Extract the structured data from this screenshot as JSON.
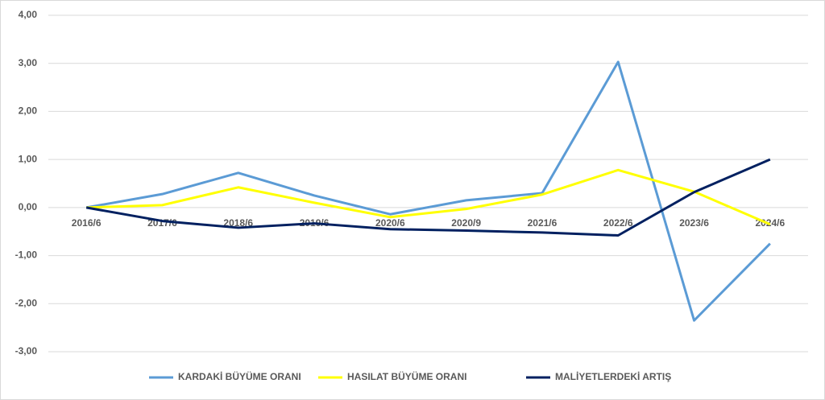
{
  "chart_data": {
    "type": "line",
    "categories": [
      "2016/6",
      "2017/6",
      "2018/6",
      "2019/6",
      "2020/6",
      "2020/9",
      "2021/6",
      "2022/6",
      "2023/6",
      "2024/6"
    ],
    "series": [
      {
        "name": "KARDAKİ BÜYÜME ORANI",
        "color": "#5b9bd5",
        "values": [
          0,
          0.28,
          0.72,
          0.25,
          -0.14,
          0.15,
          0.3,
          3.03,
          -2.35,
          -0.75
        ]
      },
      {
        "name": "HASILAT BÜYÜME ORANI",
        "color": "#ffff00",
        "values": [
          0,
          0.05,
          0.42,
          0.1,
          -0.2,
          -0.03,
          0.27,
          0.78,
          0.33,
          -0.35
        ]
      },
      {
        "name": "MALİYETLERDEKİ ARTIŞ",
        "color": "#002060",
        "values": [
          0,
          -0.28,
          -0.42,
          -0.33,
          -0.45,
          -0.48,
          -0.52,
          -0.58,
          0.32,
          1.0
        ]
      }
    ],
    "ylim": [
      -3,
      4
    ],
    "yticks": [
      {
        "value": -3,
        "label": "-3,00"
      },
      {
        "value": -2,
        "label": "-2,00"
      },
      {
        "value": -1,
        "label": "-1,00"
      },
      {
        "value": 0,
        "label": "0,00"
      },
      {
        "value": 1,
        "label": "1,00"
      },
      {
        "value": 2,
        "label": "2,00"
      },
      {
        "value": 3,
        "label": "3,00"
      },
      {
        "value": 4,
        "label": "4,00"
      }
    ],
    "grid": true
  }
}
